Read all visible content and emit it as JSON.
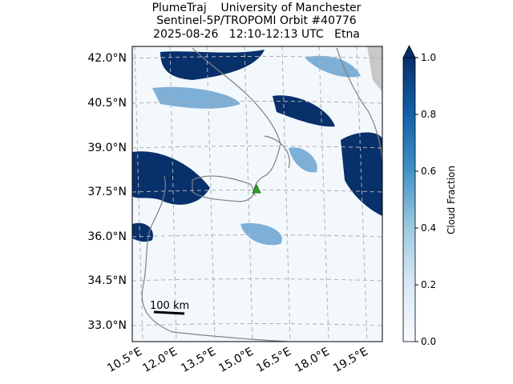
{
  "title": [
    "PlumeTraj    University of Manchester",
    "Sentinel-5P/TROPOMI Orbit #40776",
    "2025-08-26   12:10-12:13 UTC   Etna"
  ],
  "lat_labels": [
    "42.0°N",
    "40.5°N",
    "39.0°N",
    "37.5°N",
    "36.0°N",
    "34.5°N",
    "33.0°N"
  ],
  "lon_labels": [
    "10.5°E",
    "12.0°E",
    "13.5°E",
    "15.0°E",
    "16.5°E",
    "18.0°E",
    "19.5°E"
  ],
  "scale_bar": "100 km",
  "colorbar": {
    "label": "Cloud Fraction",
    "lim": [
      0,
      1
    ],
    "ticks": [
      {
        "value": 0,
        "label": "0.0"
      },
      {
        "value": 0.2,
        "label": "0.2"
      },
      {
        "value": 0.4,
        "label": "0.4"
      },
      {
        "value": 0.6,
        "label": "0.6"
      },
      {
        "value": 0.8,
        "label": "0.8"
      },
      {
        "value": 1,
        "label": "1.0"
      }
    ]
  }
}
